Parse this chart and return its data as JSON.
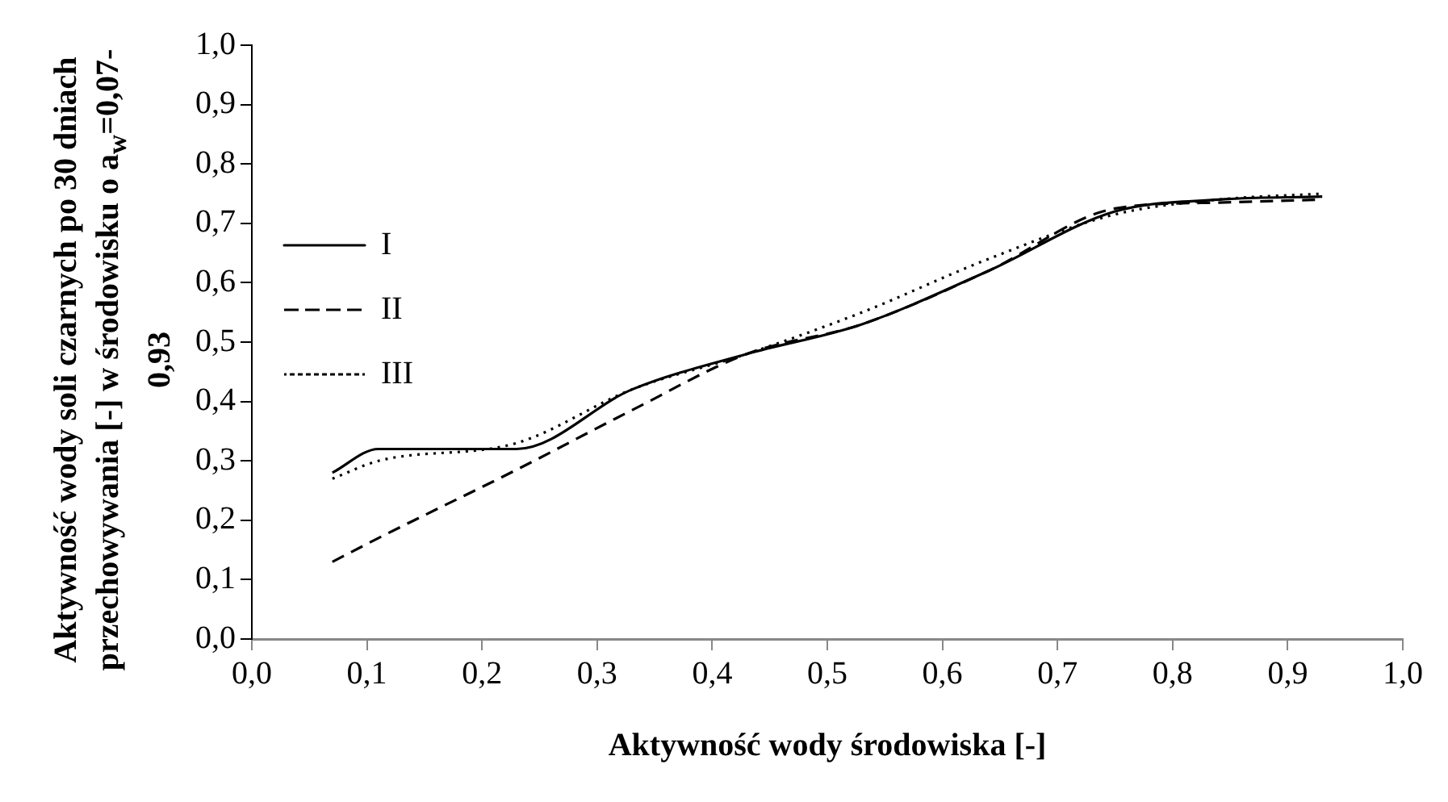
{
  "chart_data": {
    "type": "line",
    "xlabel": "Aktywność wody środowiska [-]",
    "ylabel": "Aktywność wody soli czarnych po 30 dniach przechowywania [-] w środowisku o a$_{w}$=0,07-0,93",
    "x": [
      0.07,
      0.11,
      0.23,
      0.33,
      0.43,
      0.53,
      0.64,
      0.75,
      0.84,
      0.93
    ],
    "series": [
      {
        "name": "I",
        "color": "#000000",
        "line_style": "solid",
        "values": [
          0.28,
          0.32,
          0.32,
          0.42,
          0.48,
          0.53,
          0.62,
          0.72,
          0.74,
          0.745
        ]
      },
      {
        "name": "II",
        "color": "#000000",
        "line_style": "dashed",
        "values": [
          0.13,
          0.17,
          0.285,
          0.385,
          0.48,
          0.53,
          0.62,
          0.725,
          0.735,
          0.74
        ]
      },
      {
        "name": "III",
        "color": "#000000",
        "line_style": "dotted",
        "values": [
          0.27,
          0.3,
          0.33,
          0.42,
          0.48,
          0.55,
          0.64,
          0.715,
          0.74,
          0.75
        ]
      }
    ],
    "xlim": [
      0,
      1
    ],
    "ylim": [
      0,
      1
    ],
    "xticks": [
      {
        "value": 0,
        "label": "0,0"
      },
      {
        "value": 0.1,
        "label": "0,1"
      },
      {
        "value": 0.2,
        "label": "0,2"
      },
      {
        "value": 0.3,
        "label": "0,3"
      },
      {
        "value": 0.4,
        "label": "0,4"
      },
      {
        "value": 0.5,
        "label": "0,5"
      },
      {
        "value": 0.6,
        "label": "0,6"
      },
      {
        "value": 0.7,
        "label": "0,7"
      },
      {
        "value": 0.8,
        "label": "0,8"
      },
      {
        "value": 0.9,
        "label": "0,9"
      },
      {
        "value": 1,
        "label": "1,0"
      }
    ],
    "yticks": [
      {
        "value": 0,
        "label": "0,0"
      },
      {
        "value": 0.1,
        "label": "0,1"
      },
      {
        "value": 0.2,
        "label": "0,2"
      },
      {
        "value": 0.3,
        "label": "0,3"
      },
      {
        "value": 0.4,
        "label": "0,4"
      },
      {
        "value": 0.5,
        "label": "0,5"
      },
      {
        "value": 0.6,
        "label": "0,6"
      },
      {
        "value": 0.7,
        "label": "0,7"
      },
      {
        "value": 0.8,
        "label": "0,8"
      },
      {
        "value": 0.9,
        "label": "0,9"
      },
      {
        "value": 1,
        "label": "1,0"
      }
    ],
    "grid": false,
    "legend": "top",
    "marker": "none"
  }
}
